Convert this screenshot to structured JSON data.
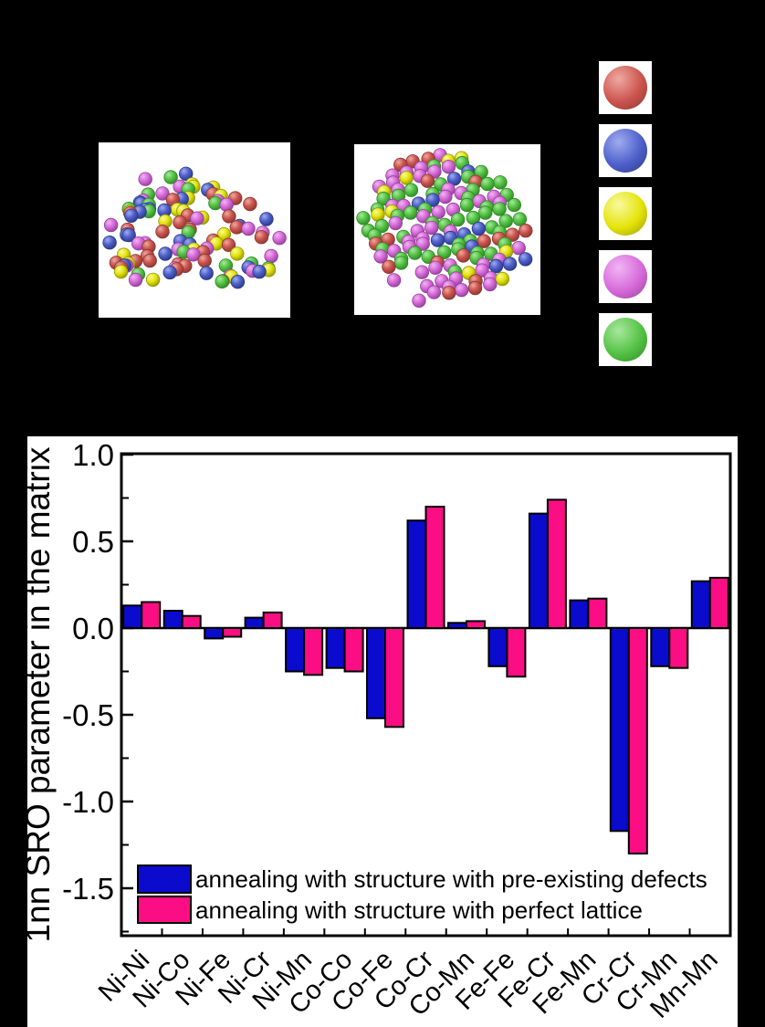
{
  "structures_section": {
    "atom_palette": [
      {
        "name": "red",
        "base": "#cb544d",
        "light": "#efa9a2",
        "dark": "#8c3732"
      },
      {
        "name": "blue",
        "base": "#4d5fca",
        "light": "#9fabef",
        "dark": "#2c3a85"
      },
      {
        "name": "yellow",
        "base": "#e4e409",
        "light": "#f9f9a0",
        "dark": "#97970a"
      },
      {
        "name": "magenta",
        "base": "#d76ada",
        "light": "#f0b6f2",
        "dark": "#94419a"
      },
      {
        "name": "green",
        "base": "#53c244",
        "light": "#a8e89d",
        "dark": "#2f8a26"
      }
    ],
    "left_panel": {
      "atom_count": 106,
      "arrangement": "disordered",
      "seed": 11,
      "color_weights": [
        0.2,
        0.2,
        0.18,
        0.22,
        0.2
      ]
    },
    "right_panel": {
      "atom_count": 130,
      "arrangement": "ordered",
      "seed": 23,
      "color_weights": [
        0.15,
        0.12,
        0.07,
        0.4,
        0.26
      ]
    }
  },
  "chart_data": {
    "type": "bar",
    "title": "",
    "xlabel": "",
    "ylabel": "1nn SRO parameter in the matrix",
    "ylim": [
      -1.78,
      1.0
    ],
    "yticks_major": [
      1.0,
      0.5,
      0.0,
      -0.5,
      -1.0,
      -1.5
    ],
    "ytick_minor_step": 0.25,
    "grid": false,
    "legend_position": "inside lower-left",
    "categories": [
      "Ni-Ni",
      "Ni-Co",
      "Ni-Fe",
      "Ni-Cr",
      "Ni-Mn",
      "Co-Co",
      "Co-Fe",
      "Co-Cr",
      "Co-Mn",
      "Fe-Fe",
      "Fe-Cr",
      "Fe-Mn",
      "Cr-Cr",
      "Cr-Mn",
      "Mn-Mn"
    ],
    "series": [
      {
        "name": "annealing with structure with pre-existing defects",
        "color": "#0b0bcd",
        "values": [
          0.13,
          0.1,
          -0.06,
          0.06,
          -0.25,
          -0.23,
          -0.52,
          0.62,
          0.03,
          -0.22,
          0.66,
          0.16,
          -1.17,
          -0.22,
          0.27
        ]
      },
      {
        "name": "annealing with structure with perfect lattice",
        "color": "#fb0d84",
        "values": [
          0.15,
          0.07,
          -0.05,
          0.09,
          -0.27,
          -0.25,
          -0.57,
          0.7,
          0.04,
          -0.28,
          0.74,
          0.17,
          -1.3,
          -0.23,
          0.29
        ]
      }
    ]
  }
}
